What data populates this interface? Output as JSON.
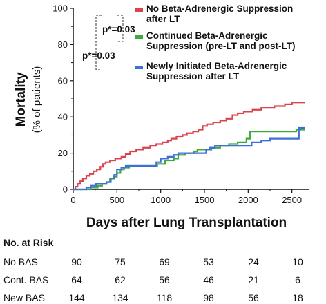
{
  "chart_data": {
    "type": "line",
    "xlabel": "Days after Lung Transplantation",
    "ylabel": "Mortality",
    "ylabel_sub": "(% of patients)",
    "xlim": [
      0,
      2700
    ],
    "ylim": [
      0,
      100
    ],
    "x_ticks": [
      0,
      500,
      1000,
      1500,
      2000,
      2500
    ],
    "y_ticks": [
      0,
      20,
      40,
      60,
      80,
      100
    ],
    "step": true,
    "series": [
      {
        "name": "No Beta-Adrenergic Suppression after LT",
        "color": "#d9434c",
        "points": [
          [
            0,
            0
          ],
          [
            25,
            1.5
          ],
          [
            50,
            3
          ],
          [
            80,
            4.5
          ],
          [
            110,
            6
          ],
          [
            150,
            7.5
          ],
          [
            190,
            8.5
          ],
          [
            230,
            10
          ],
          [
            270,
            11
          ],
          [
            310,
            12.5
          ],
          [
            340,
            14
          ],
          [
            370,
            15
          ],
          [
            420,
            16
          ],
          [
            480,
            17
          ],
          [
            550,
            18
          ],
          [
            600,
            19.5
          ],
          [
            650,
            21
          ],
          [
            720,
            22
          ],
          [
            800,
            23
          ],
          [
            880,
            24
          ],
          [
            950,
            25
          ],
          [
            1020,
            26
          ],
          [
            1080,
            27
          ],
          [
            1120,
            28
          ],
          [
            1180,
            29
          ],
          [
            1250,
            30
          ],
          [
            1300,
            31
          ],
          [
            1370,
            32
          ],
          [
            1430,
            33
          ],
          [
            1480,
            35
          ],
          [
            1530,
            36
          ],
          [
            1600,
            37
          ],
          [
            1680,
            38
          ],
          [
            1750,
            39
          ],
          [
            1820,
            41
          ],
          [
            1880,
            42
          ],
          [
            1950,
            43
          ],
          [
            2050,
            44
          ],
          [
            2150,
            45
          ],
          [
            2300,
            46
          ],
          [
            2420,
            47
          ],
          [
            2500,
            48
          ],
          [
            2650,
            48
          ]
        ]
      },
      {
        "name": "Continued Beta-Adrenergic Suppression (pre-LT and post-LT)",
        "color": "#3daa3d",
        "points": [
          [
            0,
            0
          ],
          [
            170,
            0
          ],
          [
            200,
            1
          ],
          [
            280,
            2
          ],
          [
            330,
            3
          ],
          [
            380,
            4
          ],
          [
            420,
            6
          ],
          [
            460,
            7
          ],
          [
            500,
            9
          ],
          [
            540,
            11
          ],
          [
            580,
            12
          ],
          [
            640,
            13
          ],
          [
            900,
            13
          ],
          [
            960,
            14
          ],
          [
            1050,
            16
          ],
          [
            1150,
            17
          ],
          [
            1200,
            19
          ],
          [
            1280,
            20
          ],
          [
            1380,
            21
          ],
          [
            1420,
            22
          ],
          [
            1500,
            22
          ],
          [
            1580,
            23
          ],
          [
            1680,
            24
          ],
          [
            1780,
            25
          ],
          [
            1880,
            26
          ],
          [
            1980,
            28
          ],
          [
            2020,
            32
          ],
          [
            2500,
            32
          ],
          [
            2550,
            33
          ],
          [
            2650,
            33
          ]
        ]
      },
      {
        "name": "Newly Initiated Beta-Adrenergic Suppression after LT",
        "color": "#3e6fd8",
        "points": [
          [
            0,
            0
          ],
          [
            150,
            1
          ],
          [
            200,
            2
          ],
          [
            260,
            3
          ],
          [
            320,
            3
          ],
          [
            380,
            4
          ],
          [
            430,
            6
          ],
          [
            470,
            8
          ],
          [
            500,
            11
          ],
          [
            550,
            12
          ],
          [
            600,
            13
          ],
          [
            900,
            13
          ],
          [
            950,
            15
          ],
          [
            1000,
            17
          ],
          [
            1080,
            18
          ],
          [
            1150,
            19
          ],
          [
            1200,
            20
          ],
          [
            1500,
            20
          ],
          [
            1520,
            22
          ],
          [
            1560,
            23
          ],
          [
            1620,
            24
          ],
          [
            2000,
            24
          ],
          [
            2040,
            26
          ],
          [
            2150,
            27
          ],
          [
            2250,
            28
          ],
          [
            2550,
            28
          ],
          [
            2580,
            34
          ],
          [
            2650,
            34
          ]
        ]
      }
    ],
    "annotations": [
      {
        "text": "p*=0.03",
        "between": [
          0,
          1
        ]
      },
      {
        "text": "p*=0.03",
        "between": [
          0,
          2
        ]
      }
    ],
    "legend_lines": [
      [
        "No Beta-Adrenergic Suppression",
        "after LT"
      ],
      [
        "Continued Beta-Adrenergic",
        "Suppression (pre-LT and post-LT)"
      ],
      [
        "Newly Initiated Beta-Adrenergic",
        "Suppression after LT"
      ]
    ],
    "risk_table": {
      "title": "No. at Risk",
      "rows": [
        {
          "label": "No BAS",
          "values": [
            "90",
            "75",
            "69",
            "53",
            "24",
            "10"
          ]
        },
        {
          "label": "Cont. BAS",
          "values": [
            "64",
            "62",
            "56",
            "46",
            "21",
            "6"
          ]
        },
        {
          "label": "New BAS",
          "values": [
            "144",
            "134",
            "118",
            "98",
            "56",
            "18"
          ]
        }
      ]
    }
  }
}
